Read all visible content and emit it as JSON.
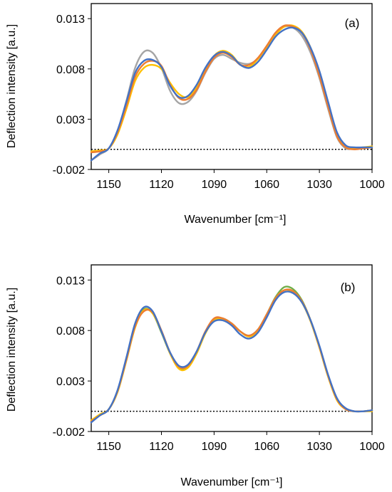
{
  "figure": {
    "xlabel": "Wavenumber [cm⁻¹]",
    "ylabel": "Deflection intensity [a.u.]"
  },
  "chart_data": [
    {
      "type": "line",
      "panel_label": "(a)",
      "xlabel": "Wavenumber [cm⁻¹]",
      "ylabel": "Deflection intensity [a.u.]",
      "xlim": [
        1160,
        1000
      ],
      "ylim": [
        -0.002,
        0.0145
      ],
      "x_ticks": [
        1150,
        1120,
        1090,
        1060,
        1030,
        1000
      ],
      "y_ticks": [
        0.013,
        0.008,
        0.003,
        -0.002
      ],
      "baseline": 0.0,
      "x": [
        1160,
        1155,
        1150,
        1145,
        1140,
        1135,
        1130,
        1125,
        1120,
        1115,
        1110,
        1105,
        1100,
        1095,
        1090,
        1085,
        1080,
        1075,
        1070,
        1065,
        1060,
        1055,
        1050,
        1045,
        1040,
        1035,
        1030,
        1025,
        1020,
        1015,
        1010,
        1005,
        1000
      ],
      "series": [
        {
          "color": "#a5a5a5",
          "values": [
            -0.0011,
            -0.0005,
            0.0001,
            0.0018,
            0.0048,
            0.0081,
            0.0097,
            0.0096,
            0.0081,
            0.0058,
            0.0046,
            0.0047,
            0.0058,
            0.0076,
            0.009,
            0.0094,
            0.009,
            0.0086,
            0.0085,
            0.009,
            0.0101,
            0.0115,
            0.0122,
            0.0121,
            0.0113,
            0.0096,
            0.0071,
            0.004,
            0.0012,
            0.0001,
            0.0001,
            0.0001,
            0.0003
          ]
        },
        {
          "color": "#ffc000",
          "values": [
            -0.0002,
            -0.0001,
            0.0001,
            0.0015,
            0.004,
            0.0068,
            0.0081,
            0.0084,
            0.008,
            0.0066,
            0.0055,
            0.0052,
            0.0061,
            0.0078,
            0.0093,
            0.0098,
            0.0094,
            0.0084,
            0.0082,
            0.009,
            0.0102,
            0.0114,
            0.0122,
            0.0123,
            0.0117,
            0.0101,
            0.0076,
            0.0045,
            0.0015,
            0.0003,
            0.0001,
            0.0002,
            0.0003
          ]
        },
        {
          "color": "#ed7d31",
          "values": [
            -0.0003,
            -0.0002,
            0.0001,
            0.0017,
            0.0043,
            0.0072,
            0.0085,
            0.0088,
            0.0083,
            0.0064,
            0.0051,
            0.005,
            0.0059,
            0.0077,
            0.0091,
            0.0096,
            0.0092,
            0.0084,
            0.0084,
            0.0091,
            0.0103,
            0.0116,
            0.0123,
            0.0122,
            0.0116,
            0.0099,
            0.0073,
            0.0042,
            0.0013,
            0.0002,
            0.0,
            0.0001,
            0.0002
          ]
        },
        {
          "color": "#4472c4",
          "values": [
            -0.0011,
            -0.0004,
            0.0001,
            0.0019,
            0.0047,
            0.0076,
            0.0088,
            0.0089,
            0.0082,
            0.0063,
            0.0052,
            0.0053,
            0.0064,
            0.0081,
            0.0093,
            0.0097,
            0.0093,
            0.0084,
            0.0081,
            0.0087,
            0.0099,
            0.0112,
            0.0119,
            0.0121,
            0.0116,
            0.0101,
            0.0078,
            0.0047,
            0.0017,
            0.0004,
            0.0002,
            0.0002,
            0.0002
          ]
        }
      ]
    },
    {
      "type": "line",
      "panel_label": "(b)",
      "xlabel": "Wavenumber [cm⁻¹]",
      "ylabel": "Deflection intensity [a.u.]",
      "xlim": [
        1160,
        1000
      ],
      "ylim": [
        -0.002,
        0.0145
      ],
      "x_ticks": [
        1150,
        1120,
        1090,
        1060,
        1030,
        1000
      ],
      "y_ticks": [
        0.013,
        0.008,
        0.003,
        -0.002
      ],
      "baseline": 0.0,
      "x": [
        1160,
        1155,
        1150,
        1145,
        1140,
        1135,
        1130,
        1125,
        1120,
        1115,
        1110,
        1105,
        1100,
        1095,
        1090,
        1085,
        1080,
        1075,
        1070,
        1065,
        1060,
        1055,
        1050,
        1045,
        1040,
        1035,
        1030,
        1025,
        1020,
        1015,
        1010,
        1005,
        1000
      ],
      "series": [
        {
          "color": "#70ad47",
          "values": [
            -0.001,
            -0.0004,
            0.0002,
            0.002,
            0.0052,
            0.0085,
            0.0101,
            0.0097,
            0.0078,
            0.0057,
            0.0043,
            0.0044,
            0.0058,
            0.0078,
            0.0091,
            0.0092,
            0.0087,
            0.0079,
            0.0075,
            0.0081,
            0.0096,
            0.0113,
            0.0123,
            0.0121,
            0.011,
            0.009,
            0.0064,
            0.0035,
            0.0012,
            0.0002,
            0.0,
            0.0,
            0.0001
          ]
        },
        {
          "color": "#ffc000",
          "values": [
            -0.0009,
            -0.0003,
            0.0002,
            0.0019,
            0.005,
            0.0083,
            0.01,
            0.0097,
            0.0079,
            0.0057,
            0.0042,
            0.0043,
            0.0057,
            0.0077,
            0.009,
            0.0091,
            0.0087,
            0.0079,
            0.0074,
            0.008,
            0.0095,
            0.0112,
            0.012,
            0.0118,
            0.0108,
            0.0089,
            0.0063,
            0.0034,
            0.0011,
            0.0002,
            0.0,
            0.0,
            0.0
          ]
        },
        {
          "color": "#ed7d31",
          "values": [
            -0.001,
            -0.0004,
            0.0002,
            0.002,
            0.0051,
            0.0084,
            0.0099,
            0.0098,
            0.008,
            0.0058,
            0.0044,
            0.0045,
            0.0059,
            0.0079,
            0.0092,
            0.0092,
            0.0087,
            0.0079,
            0.0075,
            0.0081,
            0.0096,
            0.0112,
            0.012,
            0.0119,
            0.0109,
            0.009,
            0.0064,
            0.0035,
            0.0012,
            0.0002,
            0.0,
            0.0,
            0.0001
          ]
        },
        {
          "color": "#4472c4",
          "values": [
            -0.0011,
            -0.0004,
            0.0002,
            0.0021,
            0.0053,
            0.0087,
            0.0103,
            0.0099,
            0.0079,
            0.0058,
            0.0045,
            0.0046,
            0.0059,
            0.0078,
            0.0089,
            0.009,
            0.0085,
            0.0076,
            0.0072,
            0.0078,
            0.0093,
            0.011,
            0.0118,
            0.0117,
            0.0108,
            0.009,
            0.0065,
            0.0036,
            0.0013,
            0.0003,
            0.0,
            0.0,
            0.0001
          ]
        }
      ]
    }
  ]
}
